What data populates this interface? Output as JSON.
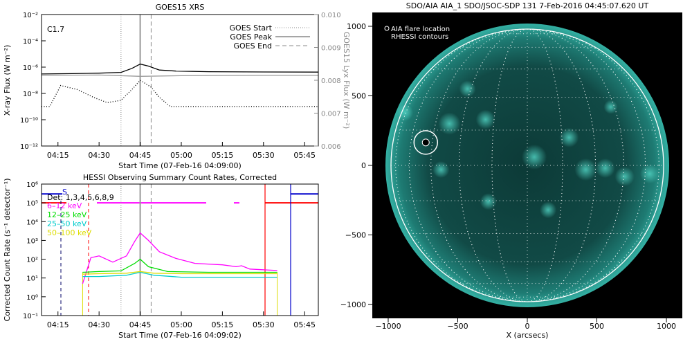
{
  "chart_data": [
    {
      "type": "line",
      "title": "GOES15 XRS",
      "xlabel": "Start Time (07-Feb-16 04:09:00)",
      "ylabel": "X-ray Flux (W m⁻²)",
      "ylabel_right": "GOES15 Lyx Flux (W m⁻²)",
      "x_ticks": [
        "04:15",
        "04:30",
        "04:45",
        "05:00",
        "05:15",
        "05:30",
        "05:45"
      ],
      "y_ticks": [
        "10⁻²",
        "10⁻⁴",
        "10⁻⁶",
        "10⁻⁸",
        "10⁻¹⁰",
        "10⁻¹²"
      ],
      "y_ticks_right": [
        "0.010",
        "0.009",
        "0.008",
        "0.007",
        "0.006"
      ],
      "ylim": [
        "1e-12",
        "1e-2"
      ],
      "ylim_right": [
        0.006,
        0.01
      ],
      "xlim": [
        "04:09",
        "05:50"
      ],
      "annotation": "C1.7",
      "legend": [
        {
          "label": "GOES Start",
          "style": "dotted"
        },
        {
          "label": "GOES Peak",
          "style": "solid"
        },
        {
          "label": "GOES End",
          "style": "dashed"
        }
      ],
      "legend_position": "top-right",
      "event_lines": {
        "start": "04:38",
        "peak": "04:45",
        "end": "04:49"
      },
      "series": [
        {
          "color": "#000000",
          "style": "solid",
          "scale": "log",
          "x": [
            "04:09",
            "04:20",
            "04:30",
            "04:38",
            "04:42",
            "04:45",
            "04:48",
            "04:52",
            "04:58",
            "05:10",
            "05:30",
            "05:50"
          ],
          "y": [
            "3e-7",
            "3.2e-7",
            "3.5e-7",
            "4e-7",
            "8e-7",
            "1.7e-6",
            "1.2e-6",
            "6e-7",
            "5e-7",
            "4.5e-7",
            "4.3e-7",
            "4.2e-7"
          ]
        },
        {
          "color": "#999999",
          "style": "solid",
          "scale": "lyx",
          "x": [
            "04:09",
            "04:30",
            "04:45",
            "05:00",
            "05:30",
            "05:50"
          ],
          "y": [
            0.00815,
            0.00816,
            0.00812,
            0.00814,
            0.00815,
            0.00815
          ]
        },
        {
          "color": "#000000",
          "style": "dotted",
          "scale": "log",
          "x": [
            "04:09",
            "04:12",
            "04:16",
            "04:22",
            "04:28",
            "04:33",
            "04:38",
            "04:42",
            "04:45",
            "04:49",
            "04:52",
            "04:56",
            "05:00",
            "05:10",
            "05:20",
            "05:30",
            "05:50"
          ],
          "y": [
            "1e-9",
            "1e-9",
            "4e-8",
            "2e-8",
            "5e-9",
            "2e-9",
            "3e-9",
            "2e-8",
            "1e-7",
            "3e-8",
            "5e-9",
            "1e-9",
            "1e-9",
            "1e-9",
            "1e-9",
            "1e-9",
            "1e-9"
          ]
        }
      ]
    },
    {
      "type": "line",
      "title": "HESSI Observing Summary Count Rates, Corrected",
      "xlabel": "Start Time (07-Feb-16 04:09:02)",
      "ylabel": "Corrected Count Rate (s⁻¹ detector⁻¹)",
      "x_ticks": [
        "04:15",
        "04:30",
        "04:45",
        "05:00",
        "05:15",
        "05:30",
        "05:45"
      ],
      "y_ticks": [
        "10⁶",
        "10⁵",
        "10⁴",
        "10³",
        "10²",
        "10¹",
        "10⁰",
        "10⁻¹"
      ],
      "ylim": [
        "1e-1",
        "1e6"
      ],
      "xlim": [
        "04:09",
        "05:50"
      ],
      "annotation": "Det: 1,3,4,5,6,8,9",
      "s_label": "S",
      "legend": [
        {
          "label": "6–12 keV",
          "color": "#ff00ff"
        },
        {
          "label": "12–25 keV",
          "color": "#00dd00"
        },
        {
          "label": "25–50 keV",
          "color": "#00cccc"
        },
        {
          "label": "50–100 keV",
          "color": "#dddd00"
        }
      ],
      "legend_position": "top-left",
      "event_lines": {
        "start": "04:38",
        "peak": "04:45",
        "end": "04:49"
      },
      "series": [
        {
          "name": "6–12 keV",
          "color": "#ff00ff",
          "x": [
            "04:24",
            "04:27",
            "04:30",
            "04:35",
            "04:40",
            "04:43",
            "04:45",
            "04:48",
            "04:52",
            "04:58",
            "05:05",
            "05:15",
            "05:20",
            "05:22",
            "05:25",
            "05:35"
          ],
          "y": [
            5,
            120,
            150,
            70,
            150,
            900,
            2500,
            1000,
            250,
            110,
            60,
            50,
            40,
            45,
            30,
            25
          ]
        },
        {
          "name": "12–25 keV",
          "color": "#00dd00",
          "x": [
            "04:24",
            "04:30",
            "04:38",
            "04:43",
            "04:45",
            "04:48",
            "04:55",
            "05:10",
            "05:35"
          ],
          "y": [
            20,
            22,
            24,
            60,
            100,
            40,
            22,
            20,
            20
          ]
        },
        {
          "name": "25–50 keV",
          "color": "#00cccc",
          "x": [
            "04:24",
            "04:30",
            "04:40",
            "04:45",
            "04:50",
            "05:00",
            "05:20",
            "05:35"
          ],
          "y": [
            12,
            12,
            14,
            20,
            14,
            11,
            11,
            11
          ]
        },
        {
          "name": "50–100 keV",
          "color": "#dddd00",
          "x": [
            "04:24",
            "04:30",
            "04:40",
            "04:45",
            "04:50",
            "05:00",
            "05:20",
            "05:35"
          ],
          "y": [
            16,
            17,
            18,
            22,
            18,
            17,
            17,
            17
          ]
        }
      ]
    },
    {
      "type": "scatter",
      "title": "SDO/AIA AIA_1 SDO/JSOC-SDP 131   7-Feb-2016 04:45:07.620 UT",
      "xlabel": "X (arcsecs)",
      "ylabel": "Y (arcsecs)",
      "x_ticks": [
        "−1000",
        "−500",
        "0",
        "500",
        "1000"
      ],
      "y_ticks": [
        "1000",
        "500",
        "0",
        "−500",
        "−1000"
      ],
      "xlim": [
        -1100,
        1100
      ],
      "ylim": [
        -1100,
        1100
      ],
      "legend": [
        {
          "label": "AIA flare location",
          "marker": "circle"
        },
        {
          "label": "RHESSI contours",
          "marker": "none"
        }
      ],
      "legend_position": "top-left",
      "flare_location": {
        "x": -730,
        "y": 165
      },
      "solar_radius_arcsec": 980
    }
  ]
}
